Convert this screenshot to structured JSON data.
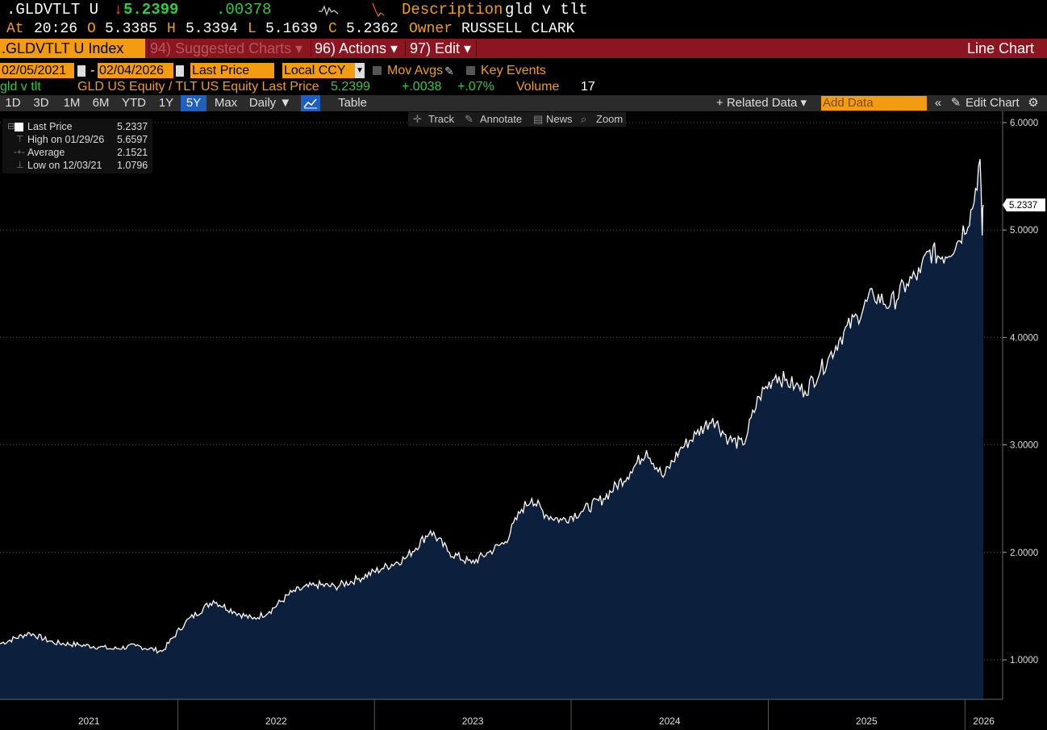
{
  "header": {
    "ticker": ".GLDVTLT U",
    "last_arrow": "↓",
    "last": "5.2399",
    "change": ".00378",
    "description_label": "Description",
    "description": "gld v tlt",
    "at_label": "At",
    "time": "20:26",
    "open_label": "O",
    "open": "5.3385",
    "high_label": "H",
    "high": "5.3394",
    "low_label": "L",
    "low": "5.1639",
    "close_label": "C",
    "close": "5.2362",
    "owner_label": "Owner",
    "owner": "RUSSELL CLARK"
  },
  "toolbar": {
    "security": ".GLDVTLT U Index",
    "suggested": "94) Suggested Charts ▾",
    "actions": "96) Actions ▾",
    "edit": "97) Edit ▾",
    "chart_type": "Line Chart"
  },
  "controls": {
    "start_date": "02/05/2021",
    "dash": "-",
    "end_date": "02/04/2026",
    "field": "Last Price",
    "currency": "Local CCY",
    "mov_avgs": "Mov Avgs",
    "key_events": "Key Events"
  },
  "legend": {
    "name": "gld v tlt",
    "series": "GLD US Equity / TLT US Equity Last Price",
    "last": "5.2399",
    "change": "+.0038",
    "pct": "+.07%",
    "volume_label": "Volume",
    "volume": "17"
  },
  "range": {
    "buttons": [
      "1D",
      "3D",
      "1M",
      "6M",
      "YTD",
      "1Y",
      "5Y",
      "Max"
    ],
    "active": "5Y",
    "frequency": "Daily ▼",
    "table": "Table",
    "related": "+ Related Data ▾",
    "add_data": "Add Data",
    "edit_chart": "Edit Chart"
  },
  "subtools": {
    "track": "Track",
    "annotate": "Annotate",
    "news": "News",
    "zoom": "Zoom"
  },
  "stats": {
    "last_label": "Last Price",
    "last": "5.2337",
    "high_label": "High on 01/29/26",
    "high": "5.6597",
    "avg_label": "Average",
    "avg": "2.1521",
    "low_label": "Low on 12/03/21",
    "low": "1.0796"
  },
  "colors": {
    "accent": "#f39c12",
    "bar": "#8b1520",
    "up": "#2ecc40",
    "down": "#e74c3c",
    "area": "#0c1f3c"
  },
  "chart_data": {
    "type": "area",
    "title": "",
    "xlabel": "",
    "ylabel": "",
    "ylim": [
      0.62,
      6.1
    ],
    "yticks": [
      "1.0000",
      "2.0000",
      "3.0000",
      "4.0000",
      "5.0000",
      "6.0000"
    ],
    "ytick_values": [
      1,
      2,
      3,
      4,
      5,
      6
    ],
    "year_labels": [
      "2021",
      "2022",
      "2023",
      "2024",
      "2025",
      "2026"
    ],
    "year_boundaries": [
      "2021-01-01",
      "2022-01-01",
      "2023-01-01",
      "2024-01-01",
      "2025-01-01",
      "2026-01-01"
    ],
    "last_value_label": "5.2337",
    "grid": true,
    "series": [
      {
        "x": [
          "2021-02-05",
          "2021-04-01",
          "2021-05-15",
          "2021-07-01",
          "2021-08-10",
          "2021-09-01",
          "2021-10-15",
          "2021-12-03",
          "2022-01-15",
          "2022-03-08",
          "2022-04-15",
          "2022-05-20",
          "2022-06-20",
          "2022-08-01",
          "2022-09-15",
          "2022-10-20",
          "2022-11-30",
          "2023-01-15",
          "2023-03-01",
          "2023-04-15",
          "2023-05-20",
          "2023-06-30",
          "2023-08-01",
          "2023-09-01",
          "2023-10-01",
          "2023-10-20",
          "2023-11-15",
          "2023-12-15",
          "2024-01-20",
          "2024-03-01",
          "2024-04-20",
          "2024-05-20",
          "2024-06-20",
          "2024-07-20",
          "2024-08-20",
          "2024-09-20",
          "2024-10-20",
          "2024-11-15",
          "2024-12-15",
          "2025-01-15",
          "2025-02-01",
          "2025-02-20",
          "2025-03-10",
          "2025-04-08",
          "2025-04-22",
          "2025-05-15",
          "2025-06-15",
          "2025-07-15",
          "2025-08-15",
          "2025-09-15",
          "2025-10-10",
          "2025-10-25",
          "2025-11-20",
          "2025-12-20",
          "2026-01-15",
          "2026-01-29",
          "2026-02-02",
          "2026-02-04"
        ],
        "y": [
          1.15,
          1.25,
          1.16,
          1.14,
          1.12,
          1.1,
          1.13,
          1.0796,
          1.35,
          1.55,
          1.45,
          1.38,
          1.45,
          1.63,
          1.7,
          1.68,
          1.75,
          1.85,
          1.95,
          2.2,
          2.0,
          1.9,
          2.0,
          2.1,
          2.4,
          2.5,
          2.35,
          2.3,
          2.38,
          2.5,
          2.75,
          2.95,
          2.7,
          2.95,
          3.1,
          3.25,
          3.05,
          3.0,
          3.45,
          3.65,
          3.6,
          3.55,
          3.5,
          3.7,
          3.8,
          4.0,
          4.2,
          4.4,
          4.3,
          4.5,
          4.6,
          4.8,
          4.75,
          4.9,
          5.2,
          5.6597,
          4.95,
          5.2337
        ]
      }
    ]
  }
}
